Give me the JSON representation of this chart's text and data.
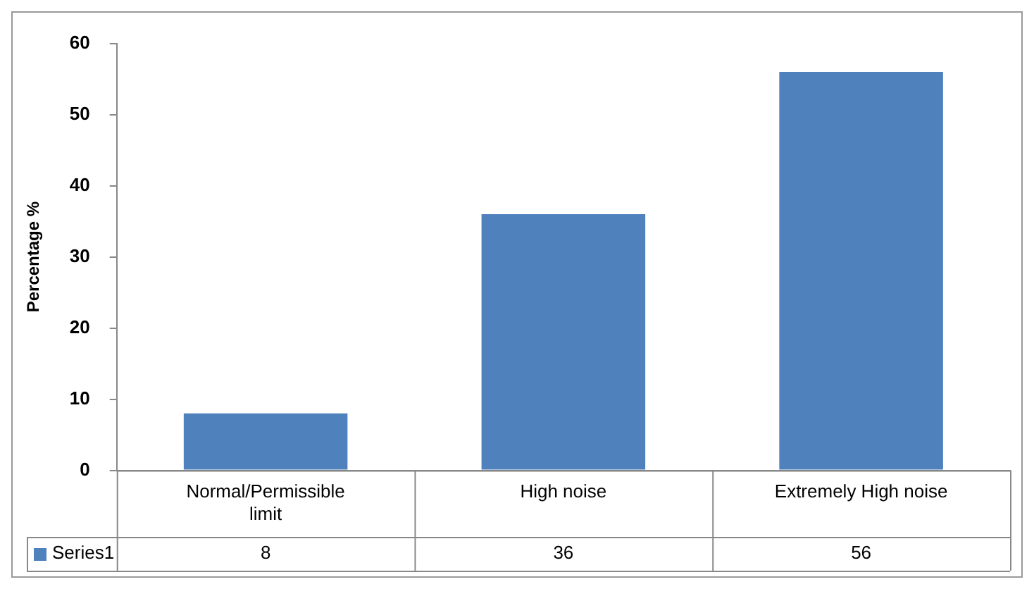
{
  "chart_data": {
    "type": "bar",
    "ylabel": "Percentage %",
    "categories": [
      "Normal/Permissible limit",
      "High noise",
      "Extremely High noise"
    ],
    "series": [
      {
        "name": "Series1",
        "color": "#4f81bd",
        "values": [
          8,
          36,
          56
        ]
      }
    ],
    "ylim": [
      0,
      60
    ],
    "yticks": [
      0,
      10,
      20,
      30,
      40,
      50,
      60
    ],
    "grid": false,
    "legend": "bottom left",
    "data_labels": true
  }
}
